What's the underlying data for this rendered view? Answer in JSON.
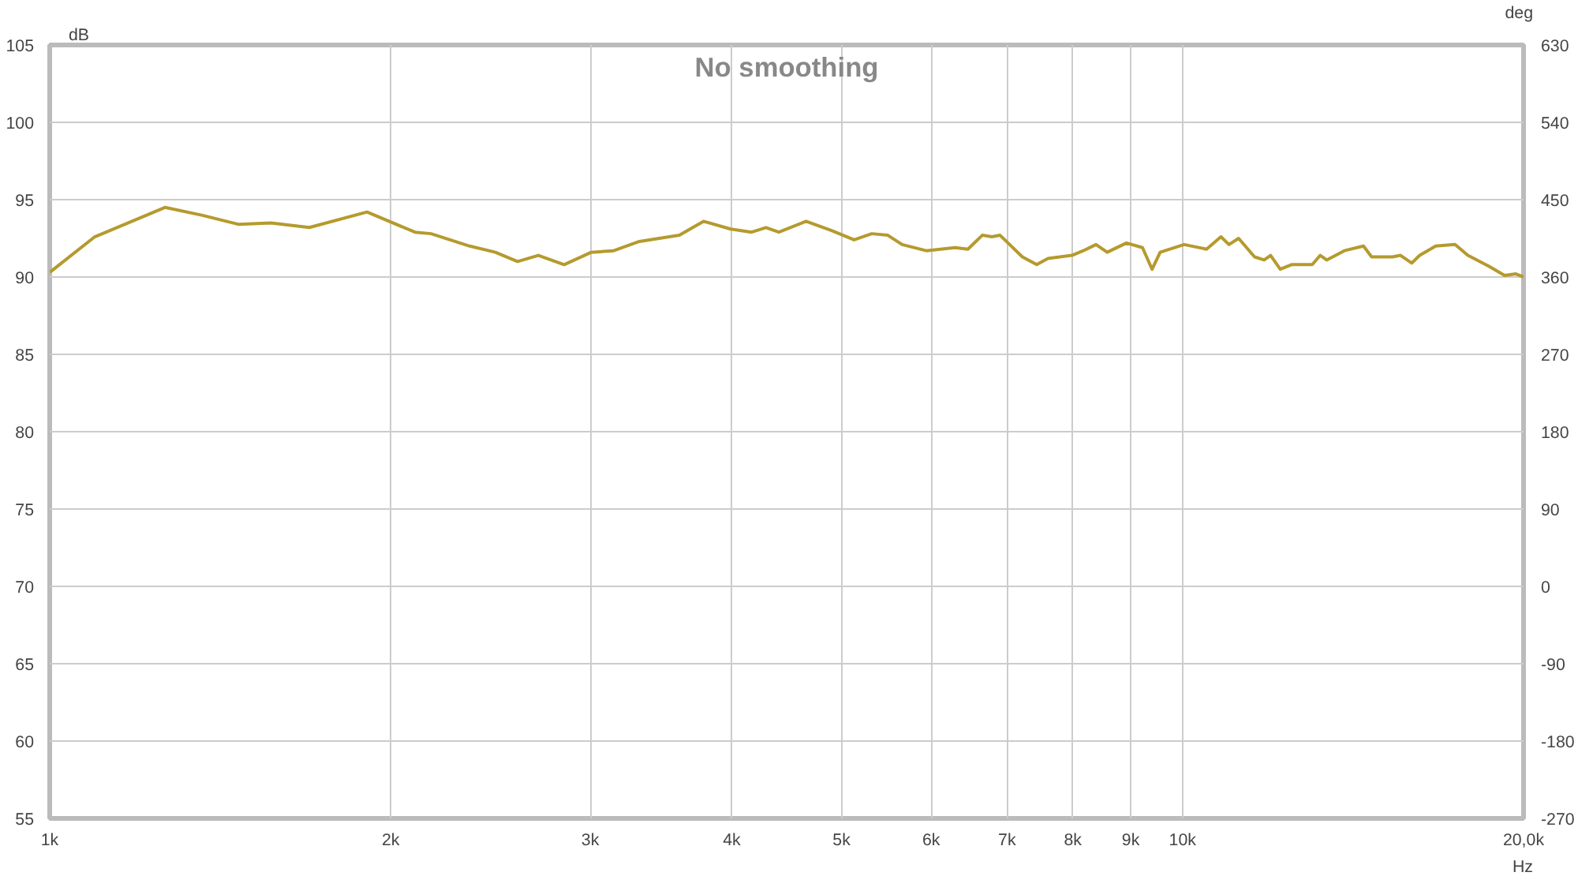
{
  "chart_data": {
    "type": "line",
    "title": "No smoothing",
    "xlabel": "Hz",
    "ylabel": "dB",
    "y2label": "deg",
    "log": "x",
    "grid": true,
    "x": [
      1000,
      1096,
      1264,
      1362,
      1469,
      1568,
      1695,
      1906,
      2101,
      2171,
      2348,
      2474,
      2588,
      2700,
      2845,
      3007,
      3147,
      3315,
      3596,
      3777,
      3992,
      4165,
      4288,
      4402,
      4652,
      4900,
      5129,
      5317,
      5493,
      5656,
      5939,
      6298,
      6464,
      6656,
      6788,
      6900,
      7221,
      7435,
      7607,
      7988,
      8172,
      8387,
      8580,
      8923,
      9218,
      9400,
      9555,
      10032,
      10500,
      10812,
      10990,
      11207,
      11576,
      11804,
      11960,
      12197,
      12480,
      13017,
      13230,
      13405,
      13894,
      14446,
      14686,
      15322,
      15573,
      15934,
      16195,
      16731,
      17400,
      17858,
      18632,
      19245,
      19690,
      20000
    ],
    "series": [
      {
        "color": "#b59a2e",
        "values": [
          90.3,
          92.6,
          94.5,
          94.0,
          93.4,
          93.5,
          93.2,
          94.2,
          92.9,
          92.8,
          92.0,
          91.6,
          91.0,
          91.4,
          90.8,
          91.6,
          91.7,
          92.3,
          92.7,
          93.6,
          93.1,
          92.9,
          93.2,
          92.9,
          93.6,
          93.0,
          92.4,
          92.8,
          92.7,
          92.1,
          91.7,
          91.9,
          91.8,
          92.7,
          92.6,
          92.7,
          91.3,
          90.8,
          91.2,
          91.4,
          91.7,
          92.1,
          91.6,
          92.2,
          91.9,
          90.5,
          91.6,
          92.1,
          91.8,
          92.6,
          92.1,
          92.5,
          91.3,
          91.1,
          91.4,
          90.5,
          90.8,
          90.8,
          91.4,
          91.1,
          91.7,
          92.0,
          91.3,
          91.3,
          91.4,
          90.9,
          91.4,
          92.0,
          92.1,
          91.4,
          90.7,
          90.1,
          90.2,
          90.0
        ]
      }
    ],
    "xlim": [
      1000,
      20000
    ],
    "xticks": [
      {
        "value": 1000,
        "label": "1k"
      },
      {
        "value": 2000,
        "label": "2k"
      },
      {
        "value": 3000,
        "label": "3k"
      },
      {
        "value": 4000,
        "label": "4k"
      },
      {
        "value": 5000,
        "label": "5k"
      },
      {
        "value": 6000,
        "label": "6k"
      },
      {
        "value": 7000,
        "label": "7k"
      },
      {
        "value": 8000,
        "label": "8k"
      },
      {
        "value": 9000,
        "label": "9k"
      },
      {
        "value": 10000,
        "label": "10k"
      },
      {
        "value": 20000,
        "label": "20,0k"
      }
    ],
    "ylim": [
      55,
      105
    ],
    "yticks": [
      55,
      60,
      65,
      70,
      75,
      80,
      85,
      90,
      95,
      100,
      105
    ],
    "y2lim": [
      -270,
      630
    ],
    "y2ticks": [
      -270,
      -180,
      -90,
      0,
      90,
      180,
      270,
      360,
      450,
      540,
      630
    ]
  }
}
